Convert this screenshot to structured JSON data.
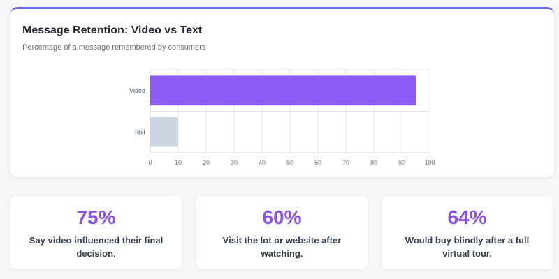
{
  "chart": {
    "title": "Message Retention: Video vs Text",
    "subtitle": "Percentage of a message remembered by consumers"
  },
  "chart_data": {
    "type": "bar",
    "orientation": "horizontal",
    "title": "Message Retention: Video vs Text",
    "subtitle": "Percentage of a message remembered by consumers",
    "categories": [
      "Video",
      "Text"
    ],
    "values": [
      95,
      10
    ],
    "colors": [
      "#8b5cf6",
      "#cbd5e1"
    ],
    "xlim": [
      0,
      100
    ],
    "xticks": [
      0,
      10,
      20,
      30,
      40,
      50,
      60,
      70,
      80,
      90,
      100
    ],
    "grid": true,
    "legend": "none"
  },
  "stats": [
    {
      "value": "75%",
      "label": "Say video influenced their final decision."
    },
    {
      "value": "60%",
      "label": "Visit the lot or website after watching."
    },
    {
      "value": "64%",
      "label": "Would buy blindly after a full virtual tour."
    }
  ],
  "colors": {
    "accent": "#8a52e6",
    "card_border": "#6b6ddc"
  }
}
